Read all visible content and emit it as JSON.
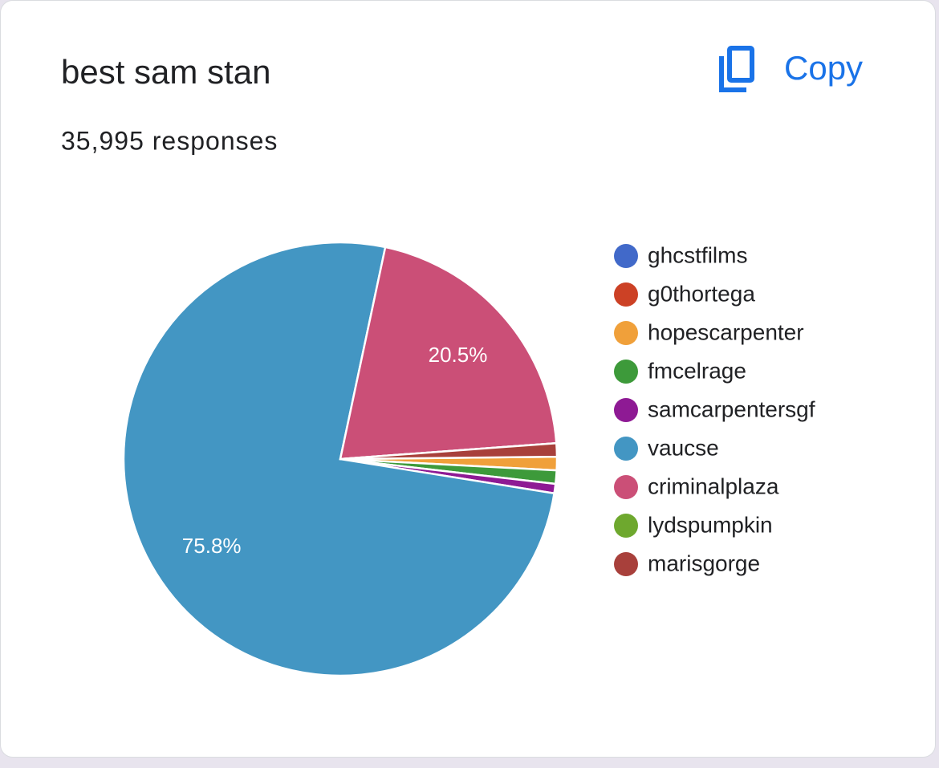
{
  "chart_data": {
    "type": "pie",
    "title": "best sam stan",
    "subtitle": "35,995 responses",
    "categories": [
      "ghcstfilms",
      "g0thortega",
      "hopescarpenter",
      "fmcelrage",
      "samcarpentersgf",
      "vaucse",
      "criminalplaza",
      "lydspumpkin",
      "marisgorge"
    ],
    "values": [
      0,
      0,
      1.0,
      1.0,
      0.7,
      75.8,
      20.5,
      0,
      1.0
    ],
    "value_labels": [
      null,
      null,
      null,
      null,
      null,
      "75.8%",
      "20.5%",
      null,
      null
    ],
    "colors": [
      "#4169c9",
      "#cc4125",
      "#f0a03a",
      "#3d9a3a",
      "#8e1a94",
      "#4396c3",
      "#cb4f77",
      "#6ea82e",
      "#a8403b"
    ],
    "legend": "right"
  },
  "copy_button": "Copy"
}
